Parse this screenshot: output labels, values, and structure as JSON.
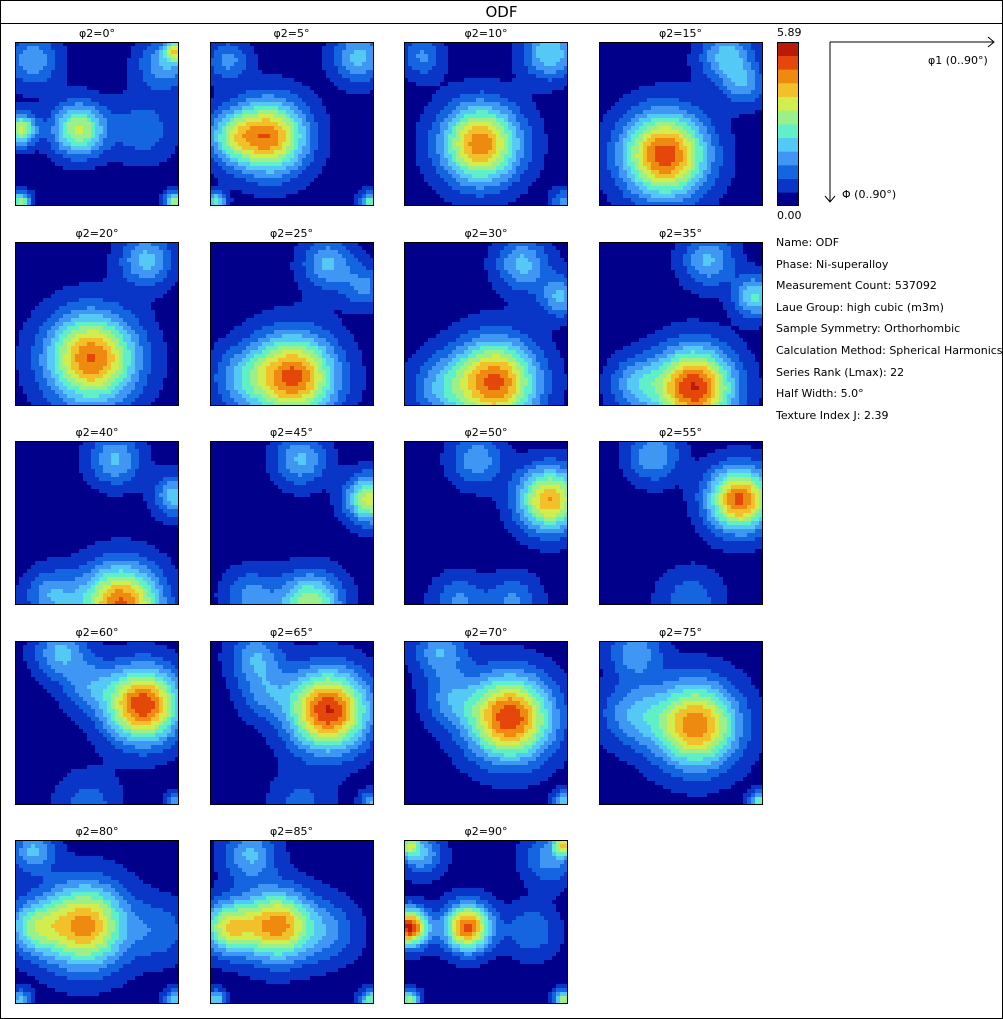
{
  "title": "ODF",
  "chart_data": {
    "type": "heatmap",
    "title": "ODF",
    "layout": "grid of phi2 sections",
    "sections": [
      "φ2=0°",
      "φ2=5°",
      "φ2=10°",
      "φ2=15°",
      "φ2=20°",
      "φ2=25°",
      "φ2=30°",
      "φ2=35°",
      "φ2=40°",
      "φ2=45°",
      "φ2=50°",
      "φ2=55°",
      "φ2=60°",
      "φ2=65°",
      "φ2=70°",
      "φ2=75°",
      "φ2=80°",
      "φ2=85°",
      "φ2=90°"
    ],
    "xaxis": {
      "label": "φ1 (0..90°)",
      "range": [
        0,
        90
      ]
    },
    "yaxis": {
      "label": "Φ (0..90°)",
      "range": [
        0,
        90
      ]
    },
    "colorbar": {
      "min": "0.00",
      "max": "5.89",
      "min_value": 0,
      "max_value": 5.89,
      "levels": 12
    },
    "colormap": [
      "#00008b",
      "#0a36c8",
      "#1565e0",
      "#3f97f3",
      "#55c9f5",
      "#60f0c8",
      "#9bf08a",
      "#d2ee4e",
      "#f2c02a",
      "#ef8a10",
      "#e5470b",
      "#b81c08"
    ],
    "peaks": [
      [
        {
          "x": 3,
          "y": 48,
          "v": 3.3,
          "s": 6
        },
        {
          "x": 35,
          "y": 48,
          "v": 3.3,
          "s": 10
        },
        {
          "x": 10,
          "y": 10,
          "v": 1.6,
          "s": 10
        },
        {
          "x": 82,
          "y": 12,
          "v": 1.7,
          "s": 10
        },
        {
          "x": 88,
          "y": 5,
          "v": 3.0,
          "s": 4
        },
        {
          "x": 3,
          "y": 88,
          "v": 3.0,
          "s": 4
        },
        {
          "x": 88,
          "y": 88,
          "v": 3.0,
          "s": 4
        },
        {
          "x": 70,
          "y": 48,
          "v": 1.1,
          "s": 12
        }
      ],
      [
        {
          "x": 33,
          "y": 52,
          "v": 4.4,
          "s": 14
        },
        {
          "x": 12,
          "y": 52,
          "v": 2.0,
          "s": 10
        },
        {
          "x": 82,
          "y": 8,
          "v": 1.9,
          "s": 10
        },
        {
          "x": 10,
          "y": 10,
          "v": 1.4,
          "s": 8
        },
        {
          "x": 88,
          "y": 88,
          "v": 2.5,
          "s": 4
        },
        {
          "x": 3,
          "y": 88,
          "v": 2.5,
          "s": 4
        }
      ],
      [
        {
          "x": 42,
          "y": 56,
          "v": 4.5,
          "s": 15
        },
        {
          "x": 80,
          "y": 6,
          "v": 2.2,
          "s": 10
        },
        {
          "x": 10,
          "y": 8,
          "v": 1.3,
          "s": 8
        },
        {
          "x": 88,
          "y": 88,
          "v": 1.5,
          "s": 5
        }
      ],
      [
        {
          "x": 36,
          "y": 62,
          "v": 5.0,
          "s": 16
        },
        {
          "x": 70,
          "y": 8,
          "v": 2.0,
          "s": 10
        },
        {
          "x": 80,
          "y": 24,
          "v": 1.4,
          "s": 8
        }
      ],
      [
        {
          "x": 42,
          "y": 64,
          "v": 4.7,
          "s": 17
        },
        {
          "x": 72,
          "y": 10,
          "v": 1.9,
          "s": 10
        }
      ],
      [
        {
          "x": 46,
          "y": 74,
          "v": 4.8,
          "s": 16
        },
        {
          "x": 18,
          "y": 75,
          "v": 1.3,
          "s": 12
        },
        {
          "x": 65,
          "y": 12,
          "v": 1.8,
          "s": 10
        },
        {
          "x": 85,
          "y": 25,
          "v": 1.3,
          "s": 8
        }
      ],
      [
        {
          "x": 50,
          "y": 77,
          "v": 4.8,
          "s": 16
        },
        {
          "x": 20,
          "y": 80,
          "v": 1.3,
          "s": 12
        },
        {
          "x": 65,
          "y": 12,
          "v": 1.9,
          "s": 10
        },
        {
          "x": 86,
          "y": 30,
          "v": 1.8,
          "s": 8
        }
      ],
      [
        {
          "x": 52,
          "y": 80,
          "v": 5.2,
          "s": 15
        },
        {
          "x": 20,
          "y": 78,
          "v": 1.6,
          "s": 10
        },
        {
          "x": 60,
          "y": 10,
          "v": 1.8,
          "s": 10
        },
        {
          "x": 86,
          "y": 30,
          "v": 2.3,
          "s": 8
        }
      ],
      [
        {
          "x": 58,
          "y": 90,
          "v": 4.8,
          "s": 15
        },
        {
          "x": 20,
          "y": 85,
          "v": 1.6,
          "s": 10
        },
        {
          "x": 55,
          "y": 10,
          "v": 1.8,
          "s": 10
        },
        {
          "x": 88,
          "y": 30,
          "v": 2.0,
          "s": 8
        }
      ],
      [
        {
          "x": 55,
          "y": 90,
          "v": 3.2,
          "s": 12
        },
        {
          "x": 22,
          "y": 85,
          "v": 1.4,
          "s": 10
        },
        {
          "x": 50,
          "y": 10,
          "v": 1.8,
          "s": 10
        },
        {
          "x": 88,
          "y": 32,
          "v": 3.5,
          "s": 9
        }
      ],
      [
        {
          "x": 80,
          "y": 32,
          "v": 4.2,
          "s": 12
        },
        {
          "x": 40,
          "y": 10,
          "v": 1.6,
          "s": 10
        },
        {
          "x": 30,
          "y": 88,
          "v": 1.3,
          "s": 10
        },
        {
          "x": 60,
          "y": 88,
          "v": 1.3,
          "s": 10
        }
      ],
      [
        {
          "x": 77,
          "y": 32,
          "v": 4.8,
          "s": 12
        },
        {
          "x": 30,
          "y": 8,
          "v": 1.7,
          "s": 10
        },
        {
          "x": 50,
          "y": 88,
          "v": 1.1,
          "s": 12
        }
      ],
      [
        {
          "x": 70,
          "y": 35,
          "v": 5.1,
          "s": 14
        },
        {
          "x": 25,
          "y": 6,
          "v": 1.8,
          "s": 10
        },
        {
          "x": 40,
          "y": 24,
          "v": 1.2,
          "s": 10
        },
        {
          "x": 40,
          "y": 90,
          "v": 1.0,
          "s": 12
        },
        {
          "x": 88,
          "y": 88,
          "v": 1.5,
          "s": 4
        }
      ],
      [
        {
          "x": 65,
          "y": 38,
          "v": 5.2,
          "s": 15
        },
        {
          "x": 25,
          "y": 8,
          "v": 1.6,
          "s": 10
        },
        {
          "x": 30,
          "y": 28,
          "v": 1.2,
          "s": 10
        },
        {
          "x": 50,
          "y": 90,
          "v": 0.9,
          "s": 12
        },
        {
          "x": 88,
          "y": 88,
          "v": 1.8,
          "s": 4
        }
      ],
      [
        {
          "x": 58,
          "y": 42,
          "v": 5.1,
          "s": 16
        },
        {
          "x": 20,
          "y": 6,
          "v": 1.7,
          "s": 10
        },
        {
          "x": 25,
          "y": 32,
          "v": 1.2,
          "s": 10
        },
        {
          "x": 88,
          "y": 88,
          "v": 2.2,
          "s": 4
        }
      ],
      [
        {
          "x": 53,
          "y": 46,
          "v": 4.6,
          "s": 16
        },
        {
          "x": 18,
          "y": 40,
          "v": 1.5,
          "s": 12
        },
        {
          "x": 20,
          "y": 6,
          "v": 1.6,
          "s": 10
        },
        {
          "x": 88,
          "y": 88,
          "v": 2.5,
          "s": 4
        }
      ],
      [
        {
          "x": 38,
          "y": 47,
          "v": 4.4,
          "s": 16
        },
        {
          "x": 10,
          "y": 48,
          "v": 2.2,
          "s": 10
        },
        {
          "x": 10,
          "y": 6,
          "v": 1.8,
          "s": 8
        },
        {
          "x": 80,
          "y": 50,
          "v": 1.0,
          "s": 12
        },
        {
          "x": 88,
          "y": 88,
          "v": 2.2,
          "s": 4
        },
        {
          "x": 3,
          "y": 88,
          "v": 2.0,
          "s": 4
        }
      ],
      [
        {
          "x": 37,
          "y": 47,
          "v": 4.4,
          "s": 13
        },
        {
          "x": 10,
          "y": 48,
          "v": 3.3,
          "s": 10
        },
        {
          "x": 22,
          "y": 8,
          "v": 1.8,
          "s": 10
        },
        {
          "x": 65,
          "y": 50,
          "v": 1.2,
          "s": 12
        },
        {
          "x": 88,
          "y": 88,
          "v": 2.6,
          "s": 4
        },
        {
          "x": 3,
          "y": 88,
          "v": 2.2,
          "s": 4
        }
      ],
      [
        {
          "x": 3,
          "y": 48,
          "v": 5.4,
          "s": 7
        },
        {
          "x": 35,
          "y": 48,
          "v": 4.8,
          "s": 9
        },
        {
          "x": 10,
          "y": 8,
          "v": 1.7,
          "s": 8
        },
        {
          "x": 80,
          "y": 10,
          "v": 1.5,
          "s": 10
        },
        {
          "x": 70,
          "y": 50,
          "v": 1.2,
          "s": 10
        },
        {
          "x": 88,
          "y": 88,
          "v": 3.2,
          "s": 4
        },
        {
          "x": 3,
          "y": 88,
          "v": 3.0,
          "s": 4
        },
        {
          "x": 88,
          "y": 3,
          "v": 3.0,
          "s": 4
        },
        {
          "x": 3,
          "y": 3,
          "v": 2.5,
          "s": 4
        }
      ]
    ]
  },
  "info": [
    "Name: ODF",
    "Phase: Ni-superalloy",
    "Measurement Count: 537092",
    "Laue Group: high cubic (m3m)",
    "Sample Symmetry: Orthorhombic",
    "Calculation Method: Spherical Harmonics",
    "Series Rank (Lmax): 22",
    "Half Width: 5.0°",
    "Texture Index J: 2.39"
  ]
}
